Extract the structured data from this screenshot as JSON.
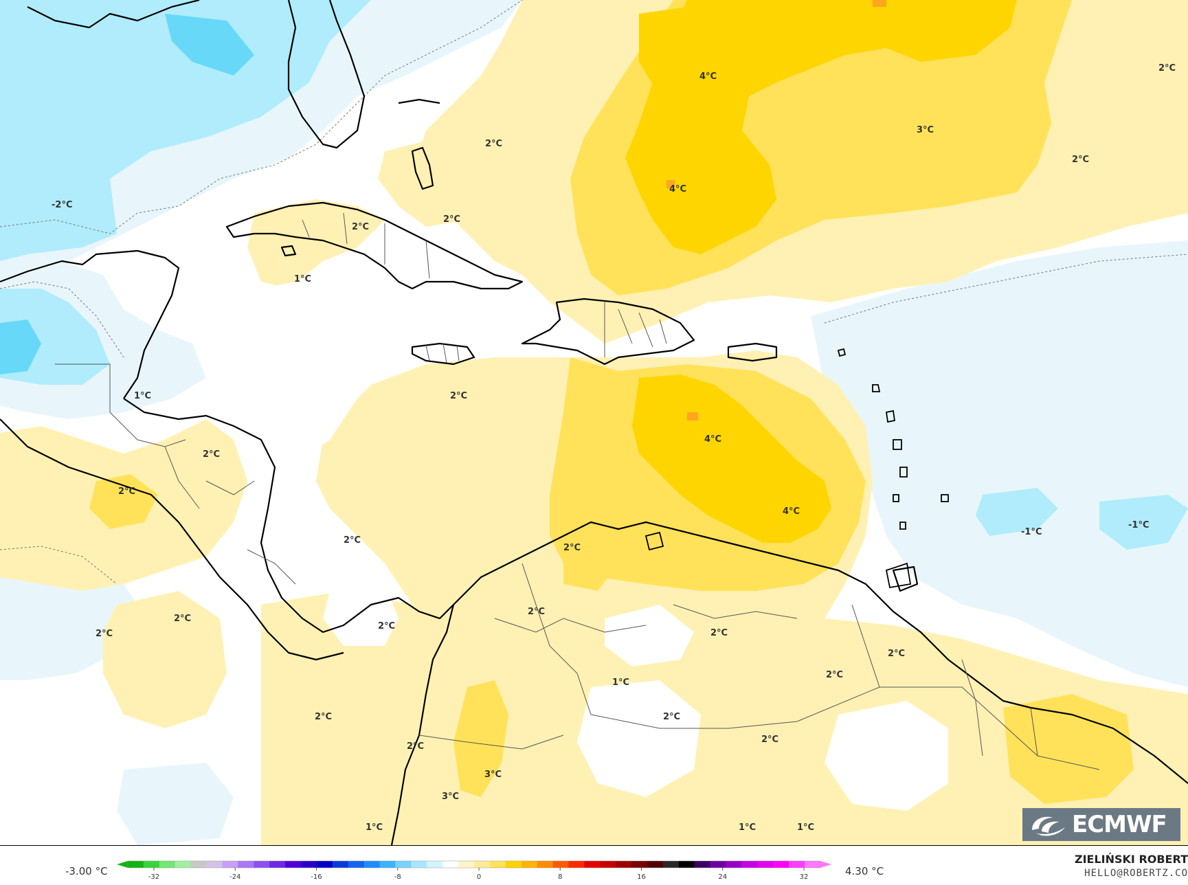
{
  "map": {
    "colors": {
      "ocean_neutral": "#ffffff",
      "cold_1": "#e8f6fc",
      "cold_2": "#b0ecfb",
      "cold_3": "#68d8f8",
      "warm_1": "#fff1b3",
      "warm_2": "#ffe259",
      "warm_3": "#ffd500",
      "warm_4": "#ffa620",
      "coast": "#000000",
      "border": "#555555"
    },
    "contour_labels": [
      {
        "id": "lbl-4c-a",
        "text": "4°C"
      },
      {
        "id": "lbl-2c-a",
        "text": "2°C"
      },
      {
        "id": "lbl-3c-a",
        "text": "3°C"
      },
      {
        "id": "lbl-2c-b",
        "text": "2°C"
      },
      {
        "id": "lbl-4c-b",
        "text": "4°C"
      },
      {
        "id": "lbl-m2c",
        "text": "-2°C"
      },
      {
        "id": "lbl-2c-c",
        "text": "2°C"
      },
      {
        "id": "lbl-2c-d",
        "text": "2°C"
      },
      {
        "id": "lbl-2c-e",
        "text": "2°C"
      },
      {
        "id": "lbl-1c-a",
        "text": "1°C"
      },
      {
        "id": "lbl-1c-b",
        "text": "1°C"
      },
      {
        "id": "lbl-2c-f",
        "text": "2°C"
      },
      {
        "id": "lbl-4c-c",
        "text": "4°C"
      },
      {
        "id": "lbl-2c-g",
        "text": "2°C"
      },
      {
        "id": "lbl-2c-h",
        "text": "2°C"
      },
      {
        "id": "lbl-4c-d",
        "text": "4°C"
      },
      {
        "id": "lbl-m1c-a",
        "text": "-1°C"
      },
      {
        "id": "lbl-m1c-b",
        "text": "-1°C"
      },
      {
        "id": "lbl-2c-i",
        "text": "2°C"
      },
      {
        "id": "lbl-2c-j",
        "text": "2°C"
      },
      {
        "id": "lbl-2c-k",
        "text": "2°C"
      },
      {
        "id": "lbl-2c-l",
        "text": "2°C"
      },
      {
        "id": "lbl-2c-m",
        "text": "2°C"
      },
      {
        "id": "lbl-2c-n",
        "text": "2°C"
      },
      {
        "id": "lbl-2c-o",
        "text": "2°C"
      },
      {
        "id": "lbl-2c-p",
        "text": "2°C"
      },
      {
        "id": "lbl-2c-q",
        "text": "2°C"
      },
      {
        "id": "lbl-1c-c",
        "text": "1°C"
      },
      {
        "id": "lbl-2c-r",
        "text": "2°C"
      },
      {
        "id": "lbl-2c-s",
        "text": "2°C"
      },
      {
        "id": "lbl-2c-t",
        "text": "2°C"
      },
      {
        "id": "lbl-2c-u",
        "text": "2°C"
      },
      {
        "id": "lbl-3c-b",
        "text": "3°C"
      },
      {
        "id": "lbl-3c-c",
        "text": "3°C"
      },
      {
        "id": "lbl-1c-d",
        "text": "1°C"
      },
      {
        "id": "lbl-1c-e",
        "text": "1°C"
      },
      {
        "id": "lbl-1c-f",
        "text": "1°C"
      }
    ]
  },
  "logo": {
    "text": "ECMWF"
  },
  "legend": {
    "min_label": "-3.00 °C",
    "max_label": "4.30 °C",
    "ticks": [
      "-32",
      "-24",
      "-16",
      "-8",
      "0",
      "8",
      "16",
      "24",
      "32"
    ],
    "palette": [
      "#12b412",
      "#3cd23c",
      "#73e673",
      "#a0f0a0",
      "#c8c8c8",
      "#d2c3e6",
      "#c8a0f5",
      "#a878f5",
      "#8c50f0",
      "#6e28e6",
      "#5000dc",
      "#2800c8",
      "#0000c8",
      "#0a3cdc",
      "#1464f0",
      "#1e8cff",
      "#3cb4ff",
      "#78d2ff",
      "#aae6ff",
      "#d2f5ff",
      "#ffffff",
      "#fff5c8",
      "#ffeb96",
      "#ffe15a",
      "#ffd200",
      "#ffb400",
      "#ff8c00",
      "#ff5a00",
      "#ff2800",
      "#e60000",
      "#c80000",
      "#a00000",
      "#780000",
      "#500000",
      "#282828",
      "#000000",
      "#3c0064",
      "#6e00a0",
      "#9600c8",
      "#c800e6",
      "#e600f0",
      "#ff00ff",
      "#ff3cff",
      "#ff78ff"
    ]
  },
  "credits": {
    "author": "ZIELIŃSKI ROBERT",
    "email": "HELLO@ROBERTZ.CO"
  }
}
